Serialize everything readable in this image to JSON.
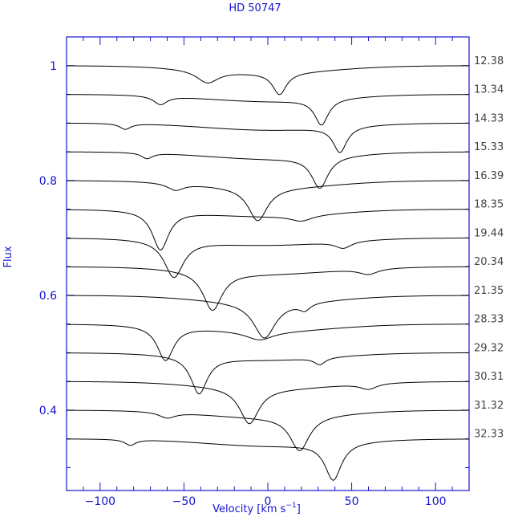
{
  "chart_data": {
    "type": "line",
    "title": "HD 50747",
    "xlabel": "Velocity [km s",
    "xlabel_sup": "−1",
    "xlabel_close": "]",
    "ylabel": "Flux",
    "xlim": [
      -120,
      120
    ],
    "ylim": [
      0.26,
      1.05
    ],
    "x_ticks": [
      -100,
      -50,
      0,
      50,
      100
    ],
    "y_ticks": [
      0.4,
      0.6,
      0.8,
      1
    ],
    "grid": false,
    "axis_color": "#1414d2",
    "line_color": "#000000",
    "series": [
      {
        "name": "12.38",
        "offset": 1.0,
        "components": [
          [
            -36,
            0.022,
            8
          ],
          [
            7,
            0.038,
            5
          ]
        ]
      },
      {
        "name": "13.34",
        "offset": 0.95,
        "components": [
          [
            -64,
            0.015,
            5
          ],
          [
            32,
            0.045,
            5
          ]
        ]
      },
      {
        "name": "14.33",
        "offset": 0.9,
        "components": [
          [
            -85,
            0.01,
            4
          ],
          [
            43,
            0.045,
            5
          ]
        ]
      },
      {
        "name": "15.33",
        "offset": 0.85,
        "components": [
          [
            -72,
            0.01,
            4
          ],
          [
            31,
            0.055,
            6
          ]
        ]
      },
      {
        "name": "16.39",
        "offset": 0.8,
        "components": [
          [
            -55,
            0.012,
            6
          ],
          [
            -6,
            0.058,
            7
          ]
        ]
      },
      {
        "name": "18.35",
        "offset": 0.75,
        "components": [
          [
            -64,
            0.068,
            6
          ],
          [
            20,
            0.01,
            8
          ]
        ]
      },
      {
        "name": "19.44",
        "offset": 0.7,
        "components": [
          [
            -56,
            0.065,
            7
          ],
          [
            45,
            0.012,
            6
          ]
        ]
      },
      {
        "name": "20.34",
        "offset": 0.65,
        "components": [
          [
            -33,
            0.068,
            7
          ],
          [
            60,
            0.01,
            7
          ]
        ]
      },
      {
        "name": "21.35",
        "offset": 0.6,
        "components": [
          [
            -2,
            0.062,
            8
          ],
          [
            22,
            0.012,
            4
          ]
        ]
      },
      {
        "name": "28.33",
        "offset": 0.55,
        "components": [
          [
            -61,
            0.06,
            6
          ],
          [
            -5,
            0.015,
            10
          ]
        ]
      },
      {
        "name": "29.32",
        "offset": 0.5,
        "components": [
          [
            -41,
            0.065,
            6
          ],
          [
            31,
            0.012,
            4
          ]
        ]
      },
      {
        "name": "30.31",
        "offset": 0.45,
        "components": [
          [
            -11,
            0.062,
            7
          ],
          [
            60,
            0.01,
            6
          ]
        ]
      },
      {
        "name": "31.32",
        "offset": 0.4,
        "components": [
          [
            19,
            0.06,
            7
          ],
          [
            -60,
            0.01,
            6
          ]
        ]
      },
      {
        "name": "32.33",
        "offset": 0.35,
        "components": [
          [
            39,
            0.065,
            6
          ],
          [
            -82,
            0.01,
            4
          ]
        ]
      }
    ]
  }
}
